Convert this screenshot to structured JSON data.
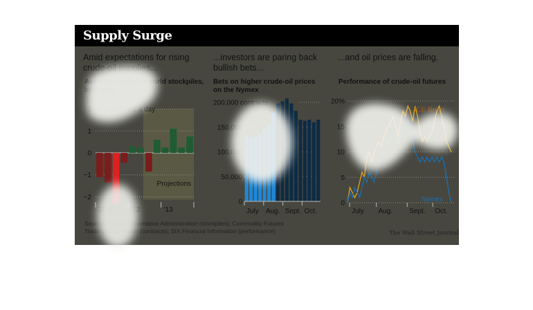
{
  "title": "Supply Surge",
  "headlines": [
    "Amid expectations for rising crude-oil supplies...",
    "...investors are paring back bullish bets...",
    "...and oil prices are falling."
  ],
  "sources": "Sources: Energy Information Administration (stockpiles); Commodity Futures Trading Commission (contracts); SIX Financial Information (performance)",
  "credit": "The Wall Street Journal",
  "colors": {
    "background": "#474740",
    "bar_negative": "#7a1d1d",
    "bar_highlight": "#e02020",
    "bar_positive": "#1f5c33",
    "projection_shade": "#5a5a44",
    "contracts_light": "#1e88d8",
    "contracts_dark": "#0d2b44",
    "brent": "#e3a21a",
    "brent_label": "#a0571a",
    "nymex": "#1c6fae"
  },
  "chart_data": [
    {
      "type": "bar",
      "title": "Average change in world stockpiles,",
      "subtitle": "by quarter",
      "unit_label": "2 million barrels a day",
      "annotation": "Projections",
      "yticks": [
        "2",
        "1",
        "0",
        "−1",
        "−2"
      ],
      "ylim": [
        -2.3,
        2.3
      ],
      "xtick_labels": [
        "2011",
        "'12",
        "'13"
      ],
      "values": [
        -1.1,
        -1.35,
        -2.3,
        -0.45,
        0.3,
        0.25,
        -0.85,
        0.6,
        0.25,
        1.1,
        0.25,
        0.75
      ]
    },
    {
      "type": "bar",
      "title": "Bets on higher crude-oil prices on the Nymex",
      "yticks": [
        "200,000 contracts",
        "150,000",
        "100,000",
        "50,000",
        "0"
      ],
      "ylim": [
        0,
        200000
      ],
      "xtick_labels": [
        "July",
        "Aug.",
        "Sept.",
        "Oct."
      ],
      "values": [
        133000,
        128000,
        132000,
        136000,
        147000,
        155000,
        180000,
        198000,
        202000,
        208000,
        198000,
        183000,
        165000,
        163000,
        165000,
        160000,
        165000
      ]
    },
    {
      "type": "line",
      "title": "Performance of crude-oil futures",
      "yticks": [
        "20%",
        "15",
        "10",
        "5",
        "0"
      ],
      "ylim": [
        0,
        20
      ],
      "xtick_labels": [
        "July",
        "Aug.",
        "Sept.",
        "Oct."
      ],
      "series": [
        {
          "name": "ICE Brent",
          "values": [
            0,
            3,
            2,
            1,
            2,
            4,
            6,
            5,
            9,
            10,
            8,
            10,
            11,
            12,
            11,
            13,
            14,
            15,
            16,
            17,
            15,
            13,
            16,
            18,
            17,
            19,
            18,
            16,
            19,
            17,
            14,
            12,
            13,
            12,
            13,
            14,
            16,
            18,
            19,
            17,
            15,
            12,
            11,
            10
          ]
        },
        {
          "name": "Nymex",
          "values": [
            0,
            2,
            1,
            3,
            2,
            1,
            3,
            5,
            4,
            6,
            5,
            4,
            6,
            8,
            9,
            10,
            11,
            12,
            13,
            14,
            13,
            12,
            13,
            14,
            15,
            16,
            15,
            12,
            10,
            9,
            8,
            9,
            8,
            9,
            8,
            9,
            8,
            9,
            8,
            9,
            8,
            5,
            2,
            0
          ]
        }
      ]
    }
  ]
}
